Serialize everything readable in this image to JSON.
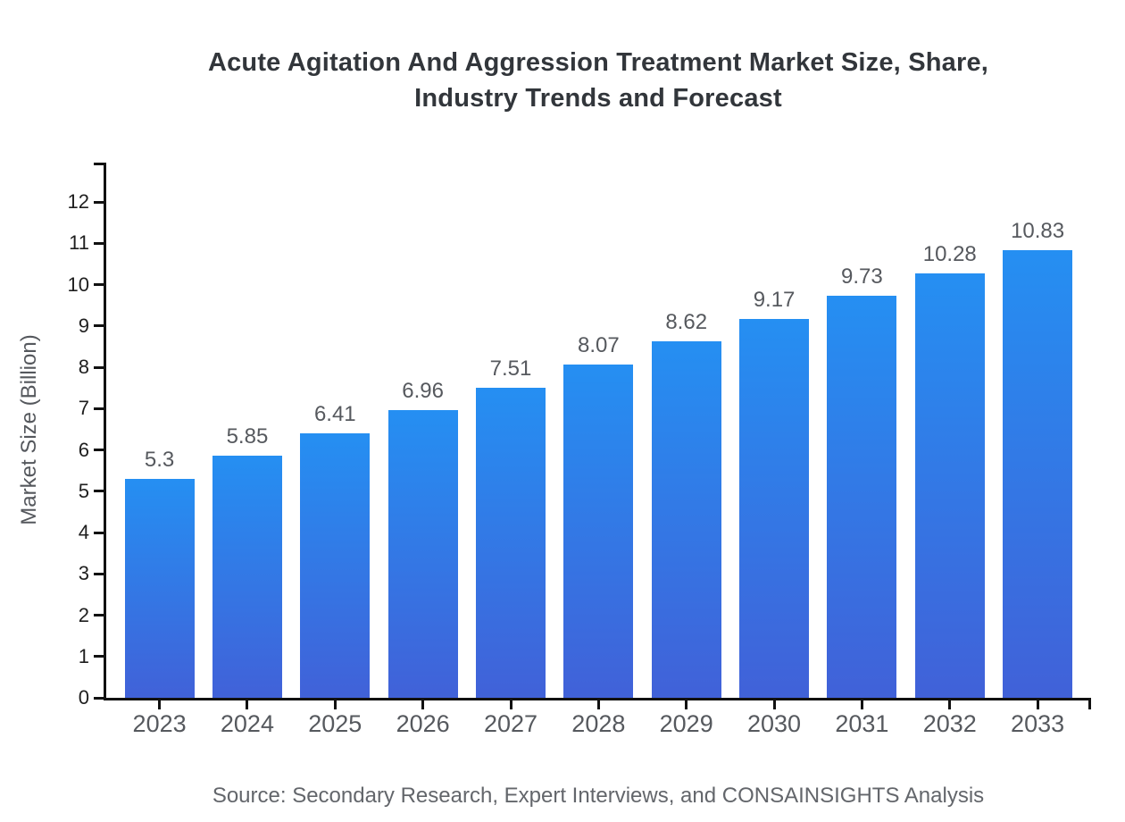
{
  "title_lines": [
    "Acute Agitation And Aggression Treatment Market Size, Share,",
    "Industry Trends and Forecast"
  ],
  "source_note": "Source: Secondary Research, Expert Interviews, and CONSAINSIGHTS Analysis",
  "chart_data": {
    "type": "bar",
    "title": "Acute Agitation And Aggression Treatment Market Size, Share, Industry Trends and Forecast",
    "categories": [
      "2023",
      "2024",
      "2025",
      "2026",
      "2027",
      "2028",
      "2029",
      "2030",
      "2031",
      "2032",
      "2033"
    ],
    "values": [
      5.3,
      5.85,
      6.41,
      6.96,
      7.51,
      8.07,
      8.62,
      9.17,
      9.73,
      10.28,
      10.83
    ],
    "value_labels": [
      "5.3",
      "5.85",
      "6.41",
      "6.96",
      "7.51",
      "8.07",
      "8.62",
      "9.17",
      "9.73",
      "10.28",
      "10.83"
    ],
    "xlabel": "",
    "ylabel": "Market Size (Billion)",
    "ylim": [
      0,
      13
    ],
    "yticks": [
      0,
      1,
      2,
      3,
      4,
      5,
      6,
      7,
      8,
      9,
      10,
      11,
      12
    ],
    "grid": false,
    "legend": "none",
    "bar_color_top": "#258FF2",
    "bar_color_bottom": "#4161D8"
  },
  "colors": {
    "background": "#ffffff",
    "axis": "#111111",
    "title_text": "#32363b",
    "ytick_text": "#1e1e1e",
    "xtick_text": "#56595e",
    "value_label_text": "#56595e",
    "source_text": "#63666b",
    "bar_gradient_top": "#258FF2",
    "bar_gradient_bottom": "#4161D8"
  }
}
